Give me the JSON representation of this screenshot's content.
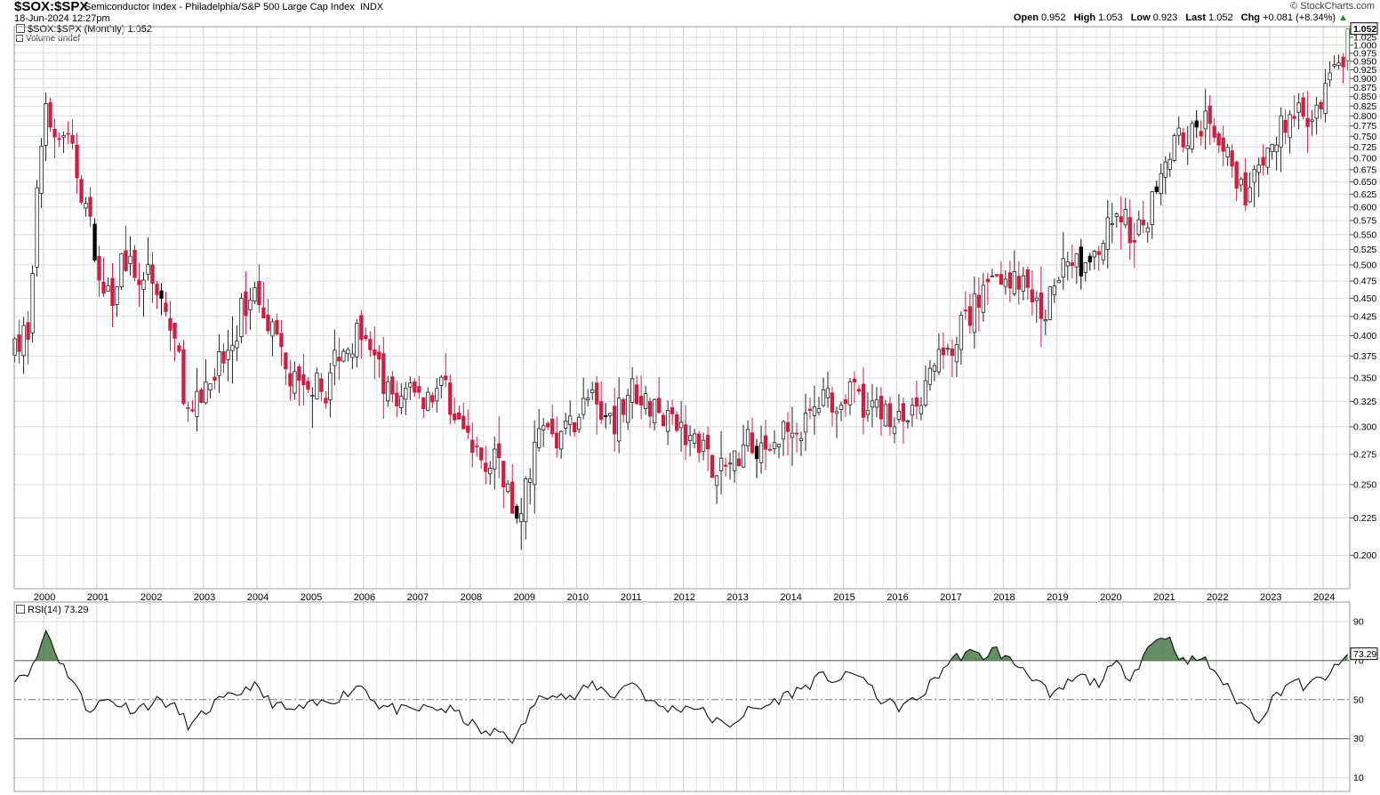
{
  "header": {
    "symbol": "$SOX:$SPX",
    "description": "Semiconductor Index - Philadelphia/S&P 500 Large Cap Index",
    "exchange": "INDX",
    "date": "18-Jun-2024 12:27pm",
    "brand": "© StockCharts.com",
    "ohlc": {
      "open_label": "Open",
      "open": "0.952",
      "high_label": "High",
      "high": "1.053",
      "low_label": "Low",
      "low": "0.923",
      "last_label": "Last",
      "last": "1.052",
      "chg_label": "Chg",
      "chg": "+0.081 (+8.34%)"
    }
  },
  "legend": {
    "price": "$SOX:$SPX (Monthly) 1.052",
    "volume": "Volume undef",
    "rsi": "RSI(14) 73.29"
  },
  "colors": {
    "up": "#ffffff",
    "down": "#cc1f44",
    "black_candle": "#000000",
    "last_candle": "#2a8a2a",
    "rsi_fill": "#4a7a4a",
    "grid": "#dcdcdc"
  },
  "chart_data": [
    {
      "type": "candlestick",
      "title": "$SOX:$SPX (Monthly)",
      "x_labels": [
        "2000",
        "2001",
        "2002",
        "2003",
        "2004",
        "2005",
        "2006",
        "2007",
        "2008",
        "2009",
        "2010",
        "2011",
        "2012",
        "2013",
        "2014",
        "2015",
        "2016",
        "2017",
        "2018",
        "2019",
        "2020",
        "2021",
        "2022",
        "2023",
        "2024"
      ],
      "y_ticks": [
        0.2,
        0.225,
        0.25,
        0.275,
        0.3,
        0.325,
        0.35,
        0.375,
        0.4,
        0.425,
        0.45,
        0.475,
        0.5,
        0.525,
        0.55,
        0.575,
        0.6,
        0.625,
        0.65,
        0.675,
        0.7,
        0.725,
        0.75,
        0.775,
        0.8,
        0.825,
        0.85,
        0.875,
        0.9,
        0.925,
        0.95,
        0.975,
        1.0,
        1.025
      ],
      "y_tick_labels": [
        "0.200",
        "0.225",
        "0.250",
        "0.275",
        "0.300",
        "0.325",
        "0.350",
        "0.375",
        "0.400",
        "0.425",
        "0.450",
        "0.475",
        "0.500",
        "0.525",
        "0.550",
        "0.575",
        "0.600",
        "0.625",
        "0.650",
        "0.675",
        "0.700",
        "0.725",
        "0.750",
        "0.775",
        "0.800",
        "0.825",
        "0.850",
        "0.875",
        "0.900",
        "0.925",
        "0.950",
        "0.975",
        "1.000",
        "1.025"
      ],
      "ylim": [
        0.18,
        1.06
      ],
      "y_scale": "log",
      "last_value": "1.052",
      "close_anchors": [
        [
          1999.5,
          0.38
        ],
        [
          1999.75,
          0.42
        ],
        [
          2000.0,
          0.8
        ],
        [
          2000.25,
          0.78
        ],
        [
          2000.5,
          0.72
        ],
        [
          2000.75,
          0.62
        ],
        [
          2001.0,
          0.5
        ],
        [
          2001.25,
          0.44
        ],
        [
          2001.5,
          0.52
        ],
        [
          2001.75,
          0.46
        ],
        [
          2002.0,
          0.5
        ],
        [
          2002.25,
          0.44
        ],
        [
          2002.5,
          0.38
        ],
        [
          2002.75,
          0.3
        ],
        [
          2003.0,
          0.34
        ],
        [
          2003.25,
          0.36
        ],
        [
          2003.5,
          0.38
        ],
        [
          2003.75,
          0.44
        ],
        [
          2004.0,
          0.46
        ],
        [
          2004.25,
          0.42
        ],
        [
          2004.5,
          0.36
        ],
        [
          2004.75,
          0.34
        ],
        [
          2005.0,
          0.35
        ],
        [
          2005.25,
          0.33
        ],
        [
          2005.5,
          0.38
        ],
        [
          2005.75,
          0.39
        ],
        [
          2006.0,
          0.42
        ],
        [
          2006.25,
          0.36
        ],
        [
          2006.5,
          0.33
        ],
        [
          2006.75,
          0.33
        ],
        [
          2007.0,
          0.33
        ],
        [
          2007.25,
          0.33
        ],
        [
          2007.5,
          0.34
        ],
        [
          2007.75,
          0.31
        ],
        [
          2008.0,
          0.28
        ],
        [
          2008.25,
          0.27
        ],
        [
          2008.5,
          0.28
        ],
        [
          2008.75,
          0.24
        ],
        [
          2008.9,
          0.215
        ],
        [
          2009.1,
          0.26
        ],
        [
          2009.25,
          0.29
        ],
        [
          2009.5,
          0.3
        ],
        [
          2009.75,
          0.29
        ],
        [
          2010.0,
          0.31
        ],
        [
          2010.25,
          0.33
        ],
        [
          2010.5,
          0.3
        ],
        [
          2010.75,
          0.31
        ],
        [
          2011.0,
          0.34
        ],
        [
          2011.25,
          0.33
        ],
        [
          2011.5,
          0.31
        ],
        [
          2011.75,
          0.3
        ],
        [
          2012.0,
          0.3
        ],
        [
          2012.25,
          0.29
        ],
        [
          2012.5,
          0.27
        ],
        [
          2012.75,
          0.26
        ],
        [
          2013.0,
          0.27
        ],
        [
          2013.25,
          0.29
        ],
        [
          2013.5,
          0.28
        ],
        [
          2013.75,
          0.29
        ],
        [
          2014.0,
          0.31
        ],
        [
          2014.25,
          0.3
        ],
        [
          2014.5,
          0.32
        ],
        [
          2014.75,
          0.33
        ],
        [
          2015.0,
          0.33
        ],
        [
          2015.25,
          0.34
        ],
        [
          2015.5,
          0.31
        ],
        [
          2015.75,
          0.32
        ],
        [
          2016.0,
          0.3
        ],
        [
          2016.25,
          0.31
        ],
        [
          2016.5,
          0.33
        ],
        [
          2016.75,
          0.37
        ],
        [
          2017.0,
          0.39
        ],
        [
          2017.25,
          0.41
        ],
        [
          2017.5,
          0.44
        ],
        [
          2017.75,
          0.47
        ],
        [
          2018.0,
          0.49
        ],
        [
          2018.25,
          0.47
        ],
        [
          2018.5,
          0.46
        ],
        [
          2018.75,
          0.43
        ],
        [
          2019.0,
          0.47
        ],
        [
          2019.25,
          0.52
        ],
        [
          2019.5,
          0.49
        ],
        [
          2019.75,
          0.52
        ],
        [
          2020.0,
          0.56
        ],
        [
          2020.25,
          0.58
        ],
        [
          2020.5,
          0.54
        ],
        [
          2020.75,
          0.6
        ],
        [
          2021.0,
          0.7
        ],
        [
          2021.25,
          0.75
        ],
        [
          2021.5,
          0.75
        ],
        [
          2021.75,
          0.78
        ],
        [
          2022.0,
          0.76
        ],
        [
          2022.25,
          0.72
        ],
        [
          2022.5,
          0.62
        ],
        [
          2022.75,
          0.65
        ],
        [
          2023.0,
          0.7
        ],
        [
          2023.25,
          0.79
        ],
        [
          2023.5,
          0.8
        ],
        [
          2023.75,
          0.78
        ],
        [
          2024.0,
          0.85
        ],
        [
          2024.25,
          0.92
        ],
        [
          2024.4,
          0.95
        ],
        [
          2024.46,
          1.052
        ]
      ]
    },
    {
      "type": "line",
      "title": "RSI(14)",
      "y_ticks": [
        10,
        30,
        50,
        70,
        90
      ],
      "ylim": [
        3,
        100
      ],
      "overbought": 70,
      "oversold": 30,
      "midline": 50,
      "last_value": "73.29",
      "anchors": [
        [
          1999.5,
          62
        ],
        [
          1999.8,
          66
        ],
        [
          2000.05,
          86
        ],
        [
          2000.3,
          70
        ],
        [
          2000.6,
          58
        ],
        [
          2000.8,
          45
        ],
        [
          2001.2,
          50
        ],
        [
          2001.7,
          45
        ],
        [
          2002.2,
          50
        ],
        [
          2002.5,
          45
        ],
        [
          2002.75,
          36
        ],
        [
          2003.2,
          48
        ],
        [
          2003.6,
          52
        ],
        [
          2003.9,
          58
        ],
        [
          2004.2,
          50
        ],
        [
          2004.6,
          44
        ],
        [
          2005.2,
          48
        ],
        [
          2005.6,
          52
        ],
        [
          2005.95,
          58
        ],
        [
          2006.3,
          47
        ],
        [
          2006.8,
          44
        ],
        [
          2007.3,
          46
        ],
        [
          2007.7,
          44
        ],
        [
          2008.0,
          38
        ],
        [
          2008.3,
          32
        ],
        [
          2008.6,
          34
        ],
        [
          2008.85,
          29
        ],
        [
          2009.2,
          48
        ],
        [
          2009.55,
          55
        ],
        [
          2009.9,
          50
        ],
        [
          2010.3,
          58
        ],
        [
          2010.7,
          52
        ],
        [
          2011.05,
          60
        ],
        [
          2011.4,
          48
        ],
        [
          2011.75,
          45
        ],
        [
          2012.2,
          47
        ],
        [
          2012.55,
          40
        ],
        [
          2012.8,
          36
        ],
        [
          2013.2,
          44
        ],
        [
          2013.5,
          46
        ],
        [
          2013.9,
          52
        ],
        [
          2014.25,
          56
        ],
        [
          2014.6,
          62
        ],
        [
          2014.9,
          60
        ],
        [
          2015.3,
          64
        ],
        [
          2015.6,
          52
        ],
        [
          2016.0,
          46
        ],
        [
          2016.4,
          50
        ],
        [
          2016.7,
          60
        ],
        [
          2017.0,
          70
        ],
        [
          2017.3,
          74
        ],
        [
          2017.6,
          72
        ],
        [
          2017.85,
          76
        ],
        [
          2018.1,
          70
        ],
        [
          2018.4,
          66
        ],
        [
          2018.7,
          58
        ],
        [
          2018.9,
          50
        ],
        [
          2019.2,
          58
        ],
        [
          2019.45,
          62
        ],
        [
          2019.75,
          58
        ],
        [
          2020.1,
          68
        ],
        [
          2020.4,
          62
        ],
        [
          2020.7,
          76
        ],
        [
          2021.0,
          84
        ],
        [
          2021.2,
          78
        ],
        [
          2021.4,
          68
        ],
        [
          2021.7,
          72
        ],
        [
          2022.0,
          64
        ],
        [
          2022.3,
          52
        ],
        [
          2022.6,
          45
        ],
        [
          2022.8,
          40
        ],
        [
          2023.1,
          52
        ],
        [
          2023.4,
          60
        ],
        [
          2023.7,
          56
        ],
        [
          2023.9,
          60
        ],
        [
          2024.15,
          64
        ],
        [
          2024.35,
          68
        ],
        [
          2024.46,
          73.29
        ]
      ]
    }
  ],
  "rsi_axis_labels": [
    "90",
    "70",
    "50",
    "30",
    "10"
  ]
}
